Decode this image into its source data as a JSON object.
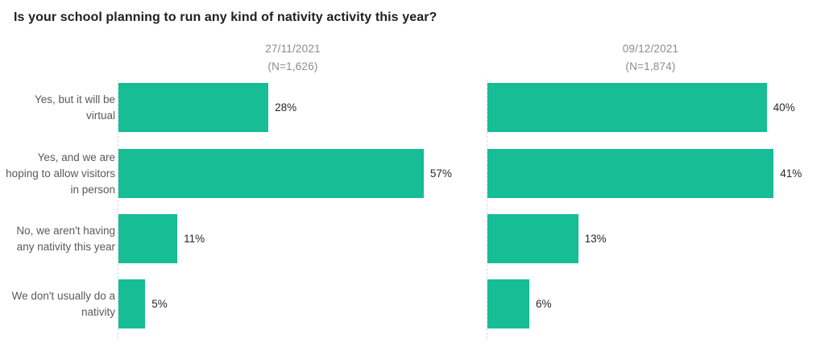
{
  "title": "Is your school planning to run any kind of nativity activity this year?",
  "colors": {
    "bar": "#16bd95",
    "title_text": "#1f1f1f",
    "header_text": "#8b8b8b",
    "category_text": "#595a5c",
    "value_text": "#28282a",
    "axis_line": "#d9d9d9"
  },
  "chart_data": {
    "type": "bar",
    "orientation": "horizontal",
    "title": "Is your school planning to run any kind of nativity activity this year?",
    "categories": [
      "Yes, but it will be virtual",
      "Yes, and we are hoping to allow visitors in person",
      "No, we aren't having any nativity this year",
      "We don't usually do a nativity"
    ],
    "series": [
      {
        "name": "27/11/2021",
        "sample_label": "(N=1,626)",
        "values": [
          28,
          57,
          11,
          5
        ]
      },
      {
        "name": "09/12/2021",
        "sample_label": "(N=1,874)",
        "values": [
          40,
          41,
          13,
          6
        ]
      }
    ],
    "value_suffix": "%",
    "data_labels": true,
    "legend": "none",
    "grid": false,
    "axis": "hidden, each panel scaled to its own max value"
  }
}
